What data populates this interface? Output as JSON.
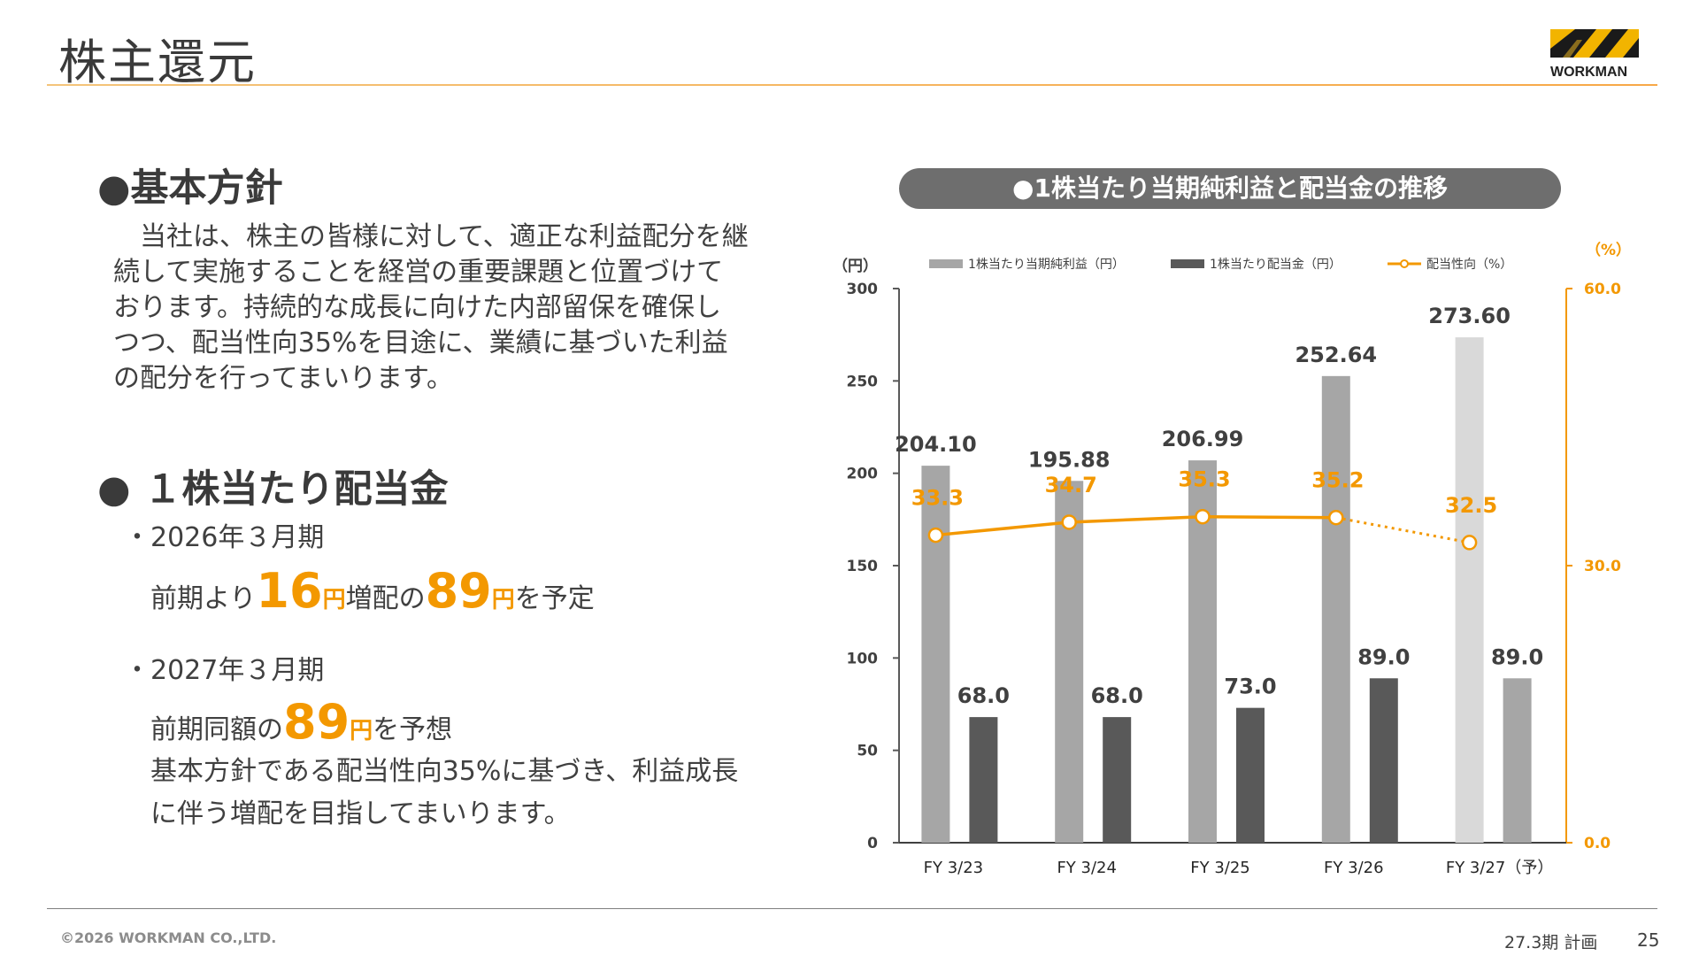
{
  "header": {
    "title": "株主還元",
    "logo_text": "WORKMAN"
  },
  "policy": {
    "heading": "●基本方針",
    "lines": [
      "　当社は、株主の皆様に対して、適正な利益配分を継",
      "続して実施することを経営の重要課題と位置づけて",
      "おります。持続的な成長に向けた内部留保を確保し",
      "つつ、配当性向35%を目途に、業績に基づいた利益",
      "の配分を行ってまいります。"
    ]
  },
  "dividend": {
    "heading": "● １株当たり配当金",
    "fy2026": {
      "label": "・2026年３月期",
      "prefix": "前期より",
      "increase": "16",
      "unit": "円",
      "middle": "増配の",
      "amount": "89",
      "suffix": "を予定"
    },
    "fy2027": {
      "label": "・2027年３月期",
      "prefix": "前期同額の",
      "amount": "89",
      "unit": "円",
      "suffix": "を予想",
      "line2": "基本方針である配当性向35%に基づき、利益成長",
      "line3": "に伴う増配を目指してまいります。"
    }
  },
  "chart_title": "●1株当たり当期純利益と配当金の推移",
  "chart_data": {
    "type": "bar",
    "categories": [
      "FY 3/23",
      "FY 3/24",
      "FY 3/25",
      "FY 3/26",
      "FY 3/27（予）"
    ],
    "series": [
      {
        "name": "1株当たり当期純利益（円）",
        "values": [
          204.1,
          195.88,
          206.99,
          252.64,
          273.6
        ],
        "labels": [
          "204.10",
          "195.88",
          "206.99",
          "252.64",
          "273.60"
        ],
        "color": "#a6a6a6",
        "forecast_color": "#d9d9d9"
      },
      {
        "name": "1株当たり配当金（円）",
        "values": [
          68.0,
          68.0,
          73.0,
          89.0,
          89.0
        ],
        "labels": [
          "68.0",
          "68.0",
          "73.0",
          "89.0",
          "89.0"
        ],
        "color": "#595959",
        "forecast_color": "#a6a6a6"
      },
      {
        "name": "配当性向（%）",
        "type": "line",
        "axis": "right",
        "values": [
          33.3,
          34.7,
          35.3,
          35.2,
          32.5
        ],
        "labels": [
          "33.3",
          "34.7",
          "35.3",
          "35.2",
          "32.5"
        ],
        "color": "#f39800"
      }
    ],
    "y_left": {
      "unit": "（円）",
      "min": 0,
      "max": 300,
      "ticks": [
        "0",
        "50",
        "100",
        "150",
        "200",
        "250",
        "300"
      ]
    },
    "y_right": {
      "unit": "（%）",
      "min": 0,
      "max": 60,
      "ticks": [
        "0.0",
        "30.0",
        "60.0"
      ]
    },
    "legend_position": "top"
  },
  "footer": {
    "copyright": "©2026 WORKMAN CO.,LTD.",
    "plan_label": "27.3期 計画",
    "page": "25"
  }
}
